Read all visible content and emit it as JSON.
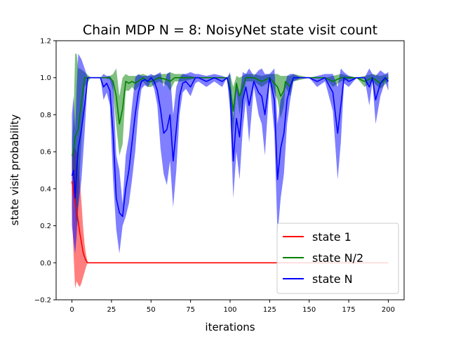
{
  "chart_data": {
    "type": "line",
    "title": "Chain MDP N = 8: NoisyNet state visit count",
    "xlabel": "iterations",
    "ylabel": "state visit probability",
    "xlim": [
      -10,
      210
    ],
    "ylim": [
      -0.2,
      1.2
    ],
    "xticks": [
      0,
      25,
      50,
      75,
      100,
      125,
      150,
      175,
      200
    ],
    "yticks": [
      -0.2,
      0.0,
      0.2,
      0.4,
      0.6,
      0.8,
      1.0,
      1.2
    ],
    "legend_position": "lower-right",
    "grid": false,
    "series": [
      {
        "name": "state 1",
        "color": "#ff0000",
        "x": [
          0,
          1,
          2,
          3,
          4,
          5,
          6,
          7,
          8,
          9,
          10,
          15,
          25,
          50,
          75,
          100,
          125,
          150,
          175,
          200
        ],
        "values": [
          0.44,
          0.38,
          0.33,
          0.28,
          0.22,
          0.16,
          0.11,
          0.06,
          0.03,
          0.01,
          0.0,
          0.0,
          0.0,
          0.0,
          0.0,
          0.0,
          0.0,
          0.0,
          0.0,
          0.0
        ],
        "lower": [
          0.3,
          0.05,
          -0.14,
          -0.1,
          -0.12,
          -0.13,
          -0.11,
          -0.08,
          -0.05,
          -0.02,
          0.0,
          0.0,
          0.0,
          0.0,
          0.0,
          0.0,
          0.0,
          0.0,
          0.0,
          0.0
        ],
        "upper": [
          0.58,
          0.62,
          0.62,
          0.6,
          0.52,
          0.44,
          0.33,
          0.2,
          0.1,
          0.04,
          0.0,
          0.0,
          0.0,
          0.0,
          0.0,
          0.0,
          0.0,
          0.0,
          0.0,
          0.0
        ]
      },
      {
        "name": "state N/2",
        "color": "#008000",
        "x": [
          0,
          1,
          2,
          3,
          4,
          5,
          8,
          12,
          20,
          24,
          26,
          28,
          30,
          32,
          34,
          36,
          38,
          40,
          45,
          48,
          50,
          55,
          60,
          62,
          65,
          70,
          80,
          90,
          98,
          100,
          102,
          104,
          106,
          110,
          115,
          120,
          125,
          128,
          130,
          132,
          134,
          135,
          138,
          140,
          150,
          160,
          165,
          170,
          180,
          185,
          190,
          195,
          200
        ],
        "values": [
          0.58,
          0.6,
          0.68,
          0.7,
          0.72,
          0.8,
          1.0,
          1.0,
          1.0,
          1.0,
          0.98,
          0.9,
          0.75,
          0.83,
          0.98,
          0.97,
          0.98,
          0.97,
          1.0,
          0.98,
          0.98,
          1.0,
          0.99,
          0.98,
          1.0,
          1.0,
          1.0,
          1.0,
          1.0,
          0.95,
          0.82,
          0.97,
          0.9,
          1.0,
          1.0,
          0.98,
          1.0,
          0.97,
          0.95,
          0.9,
          0.93,
          0.98,
          0.95,
          1.0,
          1.0,
          1.0,
          0.98,
          1.0,
          1.0,
          0.98,
          1.0,
          0.97,
          1.0
        ],
        "lower": [
          0.52,
          0.42,
          0.3,
          0.2,
          0.35,
          0.5,
          0.95,
          1.0,
          1.0,
          0.99,
          0.93,
          0.74,
          0.58,
          0.64,
          0.93,
          0.93,
          0.95,
          0.93,
          0.98,
          0.95,
          0.95,
          0.98,
          0.96,
          0.93,
          0.98,
          0.98,
          1.0,
          1.0,
          1.0,
          0.88,
          0.7,
          0.93,
          0.8,
          0.98,
          0.98,
          0.95,
          0.98,
          0.92,
          0.88,
          0.78,
          0.85,
          0.95,
          0.9,
          0.98,
          1.0,
          1.0,
          0.95,
          0.98,
          1.0,
          0.95,
          0.98,
          0.94,
          0.98
        ],
        "upper": [
          0.66,
          0.78,
          1.13,
          1.13,
          1.05,
          1.05,
          1.03,
          1.0,
          1.0,
          1.01,
          1.02,
          1.05,
          0.9,
          1.0,
          1.02,
          1.01,
          1.01,
          1.01,
          1.02,
          1.01,
          1.01,
          1.02,
          1.02,
          1.03,
          1.02,
          1.02,
          1.0,
          1.0,
          1.0,
          1.02,
          0.95,
          1.01,
          1.0,
          1.02,
          1.02,
          1.01,
          1.02,
          1.02,
          1.02,
          1.01,
          1.01,
          1.01,
          1.01,
          1.02,
          1.0,
          1.0,
          1.01,
          1.02,
          1.0,
          1.01,
          1.02,
          1.01,
          1.02
        ]
      },
      {
        "name": "state N",
        "color": "#0000ff",
        "x": [
          0,
          1,
          2,
          3,
          4,
          6,
          8,
          10,
          12,
          15,
          18,
          20,
          22,
          24,
          26,
          28,
          30,
          32,
          34,
          36,
          38,
          40,
          42,
          44,
          46,
          48,
          50,
          52,
          54,
          56,
          58,
          60,
          62,
          64,
          66,
          68,
          70,
          72,
          75,
          78,
          80,
          85,
          90,
          95,
          98,
          100,
          102,
          104,
          106,
          108,
          110,
          112,
          115,
          118,
          120,
          122,
          125,
          128,
          130,
          132,
          134,
          136,
          138,
          140,
          145,
          150,
          155,
          160,
          165,
          168,
          170,
          172,
          175,
          180,
          185,
          188,
          190,
          192,
          195,
          198,
          200
        ],
        "values": [
          0.47,
          0.5,
          0.35,
          0.5,
          0.62,
          0.72,
          0.85,
          1.0,
          1.0,
          1.0,
          1.0,
          0.95,
          0.97,
          0.93,
          0.7,
          0.35,
          0.27,
          0.25,
          0.4,
          0.5,
          0.65,
          0.8,
          0.92,
          0.98,
          0.99,
          0.98,
          1.0,
          0.98,
          0.93,
          0.83,
          0.7,
          0.72,
          0.8,
          0.55,
          0.72,
          0.9,
          0.97,
          0.98,
          0.95,
          1.0,
          1.0,
          0.98,
          1.0,
          0.98,
          1.0,
          0.93,
          0.55,
          0.78,
          0.68,
          0.88,
          0.95,
          0.85,
          0.98,
          0.92,
          0.9,
          0.8,
          1.0,
          0.88,
          0.45,
          0.62,
          0.7,
          0.88,
          0.95,
          1.0,
          1.0,
          1.0,
          0.98,
          1.0,
          0.92,
          0.7,
          0.85,
          1.0,
          0.98,
          1.0,
          1.0,
          0.95,
          1.0,
          0.88,
          0.97,
          1.0,
          0.98
        ],
        "lower": [
          0.2,
          0.12,
          0.05,
          0.15,
          0.3,
          0.45,
          0.7,
          1.0,
          1.0,
          1.0,
          1.0,
          0.88,
          0.92,
          0.85,
          0.45,
          0.18,
          0.05,
          0.2,
          0.25,
          0.32,
          0.45,
          0.6,
          0.82,
          0.94,
          0.96,
          0.95,
          0.98,
          0.94,
          0.85,
          0.62,
          0.48,
          0.42,
          0.55,
          0.3,
          0.5,
          0.8,
          0.92,
          0.94,
          0.9,
          0.97,
          0.98,
          0.95,
          0.98,
          0.95,
          1.0,
          0.82,
          0.35,
          0.6,
          0.45,
          0.72,
          0.88,
          0.65,
          0.95,
          0.8,
          0.75,
          0.58,
          0.98,
          0.7,
          0.15,
          0.35,
          0.48,
          0.75,
          0.88,
          0.98,
          1.0,
          1.0,
          0.95,
          0.98,
          0.82,
          0.45,
          0.65,
          0.97,
          0.95,
          1.0,
          1.0,
          0.85,
          0.98,
          0.75,
          0.9,
          0.98,
          0.93
        ],
        "upper": [
          0.8,
          0.9,
          0.72,
          0.95,
          1.13,
          1.1,
          1.05,
          1.0,
          1.0,
          1.0,
          1.0,
          1.02,
          1.01,
          1.01,
          0.98,
          0.58,
          0.5,
          0.32,
          0.58,
          0.68,
          0.85,
          1.0,
          1.02,
          1.01,
          1.01,
          1.01,
          1.02,
          1.01,
          1.02,
          1.03,
          0.95,
          1.02,
          1.03,
          0.8,
          0.95,
          1.0,
          1.02,
          1.02,
          1.03,
          1.02,
          1.02,
          1.01,
          1.02,
          1.01,
          1.0,
          1.03,
          0.78,
          0.96,
          0.9,
          1.03,
          1.02,
          1.05,
          1.01,
          1.04,
          1.05,
          1.02,
          1.02,
          1.05,
          0.75,
          0.88,
          0.92,
          1.01,
          1.02,
          1.02,
          1.0,
          1.0,
          1.01,
          1.02,
          1.02,
          0.95,
          1.05,
          1.03,
          1.01,
          1.0,
          1.0,
          1.05,
          1.02,
          1.01,
          1.04,
          1.02,
          1.03
        ]
      }
    ]
  }
}
